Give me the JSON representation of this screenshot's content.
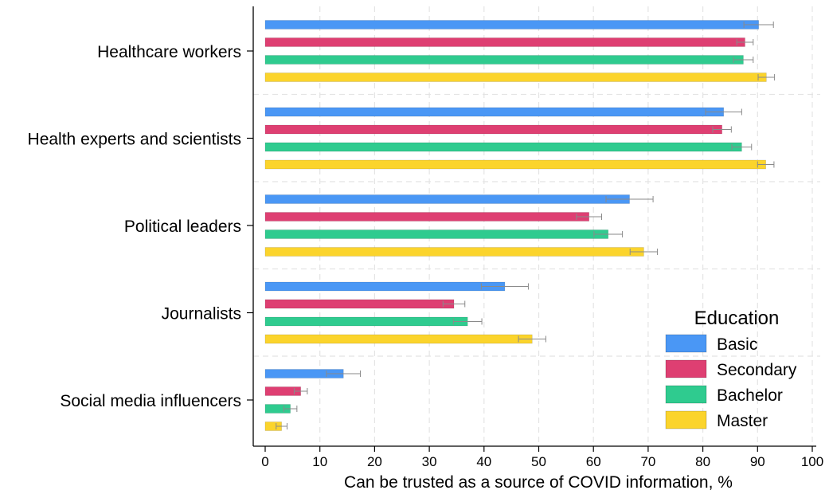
{
  "chart_data": {
    "type": "bar",
    "orientation": "horizontal",
    "title": "",
    "xlabel": "Can be trusted as a source of COVID information, %",
    "ylabel": "",
    "xlim": [
      0,
      100
    ],
    "x_ticks": [
      0,
      10,
      20,
      30,
      40,
      50,
      60,
      70,
      80,
      90,
      100
    ],
    "grid": true,
    "legend_title": "Education",
    "legend_position": "bottom-right",
    "categories": [
      "Healthcare workers",
      "Health experts and scientists",
      "Political leaders",
      "Journalists",
      "Social media influencers"
    ],
    "series": [
      {
        "name": "Basic",
        "color": "#4a97f5",
        "values": [
          90.2,
          83.8,
          66.6,
          43.8,
          14.3
        ],
        "ci_low": [
          87.5,
          80.5,
          62.3,
          39.5,
          11.2
        ],
        "ci_high": [
          92.9,
          87.1,
          70.9,
          48.1,
          17.4
        ]
      },
      {
        "name": "Secondary",
        "color": "#de3f72",
        "values": [
          87.7,
          83.5,
          59.2,
          34.5,
          6.5
        ],
        "ci_low": [
          86.2,
          81.8,
          56.9,
          32.5,
          5.3
        ],
        "ci_high": [
          89.2,
          85.2,
          61.5,
          36.5,
          7.7
        ]
      },
      {
        "name": "Bachelor",
        "color": "#2fcb8f",
        "values": [
          87.4,
          87.1,
          62.7,
          37.0,
          4.6
        ],
        "ci_low": [
          85.6,
          85.3,
          60.1,
          34.4,
          3.4
        ],
        "ci_high": [
          89.2,
          88.9,
          65.3,
          39.6,
          5.8
        ]
      },
      {
        "name": "Master",
        "color": "#fbd42c",
        "values": [
          91.6,
          91.5,
          69.2,
          48.8,
          3.0
        ],
        "ci_low": [
          90.1,
          90.0,
          66.7,
          46.3,
          2.0
        ],
        "ci_high": [
          93.1,
          93.0,
          71.7,
          51.3,
          4.0
        ]
      }
    ]
  }
}
